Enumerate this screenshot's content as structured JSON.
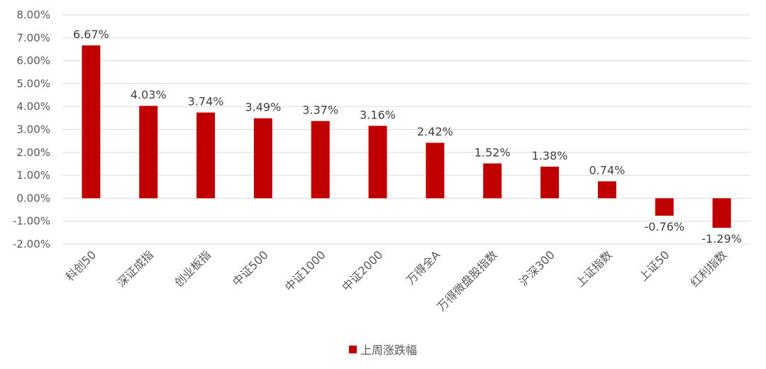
{
  "chart_data": {
    "type": "bar",
    "categories": [
      "科创50",
      "深证成指",
      "创业板指",
      "中证500",
      "中证1000",
      "中证2000",
      "万得全A",
      "万得微盘股指数",
      "沪深300",
      "上证指数",
      "上证50",
      "红利指数"
    ],
    "series": [
      {
        "name": "上周涨跌幅",
        "values": [
          6.67,
          4.03,
          3.74,
          3.49,
          3.37,
          3.16,
          2.42,
          1.52,
          1.38,
          0.74,
          -0.76,
          -1.29
        ],
        "labels": [
          "6.67%",
          "4.03%",
          "3.74%",
          "3.49%",
          "3.37%",
          "3.16%",
          "2.42%",
          "1.52%",
          "1.38%",
          "0.74%",
          "-0.76%",
          "-1.29%"
        ]
      }
    ],
    "y_ticks": [
      8,
      7,
      6,
      5,
      4,
      3,
      2,
      1,
      0,
      -1,
      -2
    ],
    "y_tick_labels": [
      "8.00%",
      "7.00%",
      "6.00%",
      "5.00%",
      "4.00%",
      "3.00%",
      "2.00%",
      "1.00%",
      "0.00%",
      "-1.00%",
      "-2.00%"
    ],
    "ylim": [
      -2,
      8
    ],
    "grid": true,
    "legend_position": "bottom",
    "bar_color": "#c00000",
    "title": "",
    "xlabel": "",
    "ylabel": ""
  }
}
